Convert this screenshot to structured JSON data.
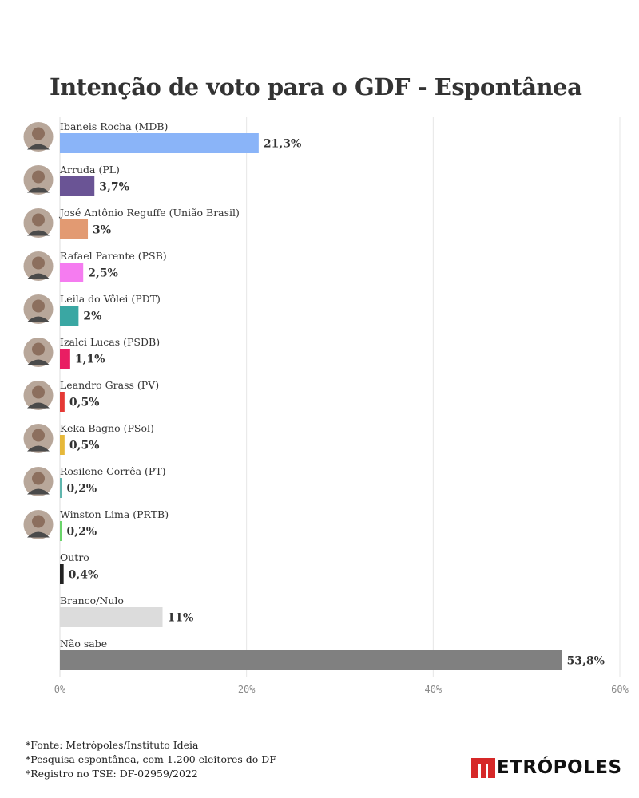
{
  "chart_data": {
    "type": "bar",
    "orientation": "horizontal",
    "title": "Intenção de voto para o GDF - Espontânea",
    "xlim": [
      0,
      60
    ],
    "xticks": [
      0,
      20,
      40,
      60
    ],
    "xtick_labels": [
      "0%",
      "20%",
      "40%",
      "60%"
    ],
    "grid": true,
    "categories": [
      "Ibaneis Rocha (MDB)",
      "Arruda (PL)",
      "José Antônio Reguffe (União Brasil)",
      "Rafael Parente (PSB)",
      "Leila do Vôlei (PDT)",
      "Izalci Lucas (PSDB)",
      "Leandro Grass (PV)",
      "Keka Bagno (PSol)",
      "Rosilene Corrêa (PT)",
      "Winston Lima (PRTB)",
      "Outro",
      "Branco/Nulo",
      "Não sabe"
    ],
    "values": [
      21.3,
      3.7,
      3,
      2.5,
      2,
      1.1,
      0.5,
      0.5,
      0.2,
      0.2,
      0.4,
      11,
      53.8
    ],
    "value_labels": [
      "21,3%",
      "3,7%",
      "3%",
      "2,5%",
      "2%",
      "1,1%",
      "0,5%",
      "0,5%",
      "0,2%",
      "0,2%",
      "0,4%",
      "11%",
      "53,8%"
    ],
    "colors": [
      "#8ab4f8",
      "#6a5495",
      "#e29a72",
      "#f57cf0",
      "#3aa7a3",
      "#e91e63",
      "#e53935",
      "#e6b83a",
      "#5fb6ad",
      "#6ad46a",
      "#222222",
      "#dcdcdc",
      "#808080"
    ],
    "has_photo": [
      true,
      true,
      true,
      true,
      true,
      true,
      true,
      true,
      true,
      true,
      false,
      false,
      false
    ]
  },
  "footer": {
    "lines": [
      "*Fonte: Metrópoles/Instituto Ideia",
      "*Pesquisa espontânea, com 1.200 eleitores do DF",
      "*Registro no TSE: DF-02959/2022"
    ]
  },
  "logo": {
    "text": "ETRÓPOLES",
    "mark_color": "#d62828"
  }
}
